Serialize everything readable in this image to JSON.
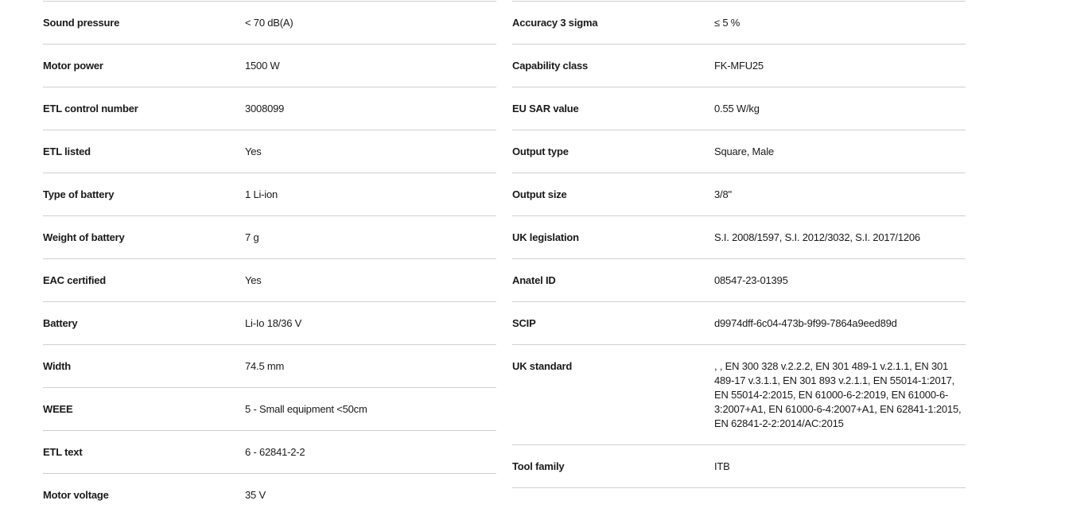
{
  "left": [
    {
      "label": "Sound pressure",
      "value": "< 70 dB(A)"
    },
    {
      "label": "Motor power",
      "value": "1500 W"
    },
    {
      "label": "ETL control number",
      "value": "3008099"
    },
    {
      "label": "ETL listed",
      "value": "Yes"
    },
    {
      "label": "Type of battery",
      "value": "1 Li-ion"
    },
    {
      "label": "Weight of battery",
      "value": "7 g"
    },
    {
      "label": "EAC certified",
      "value": "Yes"
    },
    {
      "label": "Battery",
      "value": "Li-Io 18/36 V"
    },
    {
      "label": "Width",
      "value": "74.5 mm"
    },
    {
      "label": "WEEE",
      "value": "5 - Small equipment <50cm"
    },
    {
      "label": "ETL text",
      "value": "6 - 62841-2-2"
    },
    {
      "label": "Motor voltage",
      "value": "35 V"
    }
  ],
  "right": [
    {
      "label": "Accuracy 3 sigma",
      "value": "≤ 5 %"
    },
    {
      "label": "Capability class",
      "value": "FK-MFU25"
    },
    {
      "label": "EU SAR value",
      "value": "0.55 W/kg"
    },
    {
      "label": "Output type",
      "value": "Square, Male"
    },
    {
      "label": "Output size",
      "value": "3/8\""
    },
    {
      "label": "UK legislation",
      "value": "S.I. 2008/1597, S.I. 2012/3032, S.I. 2017/1206"
    },
    {
      "label": "Anatel ID",
      "value": "08547-23-01395"
    },
    {
      "label": "SCIP",
      "value": "d9974dff-6c04-473b-9f99-7864a9eed89d"
    },
    {
      "label": "UK standard",
      "value": ", , EN 300 328 v.2.2.2, EN 301 489-1 v.2.1.1, EN 301 489-17 v.3.1.1, EN 301 893 v.2.1.1, EN 55014-1:2017, EN 55014-2:2015, EN 61000-6-2:2019, EN 61000-6-3:2007+A1, EN 61000-6-4:2007+A1, EN 62841-1:2015, EN 62841-2-2:2014/AC:2015"
    },
    {
      "label": "Tool family",
      "value": "ITB"
    }
  ]
}
